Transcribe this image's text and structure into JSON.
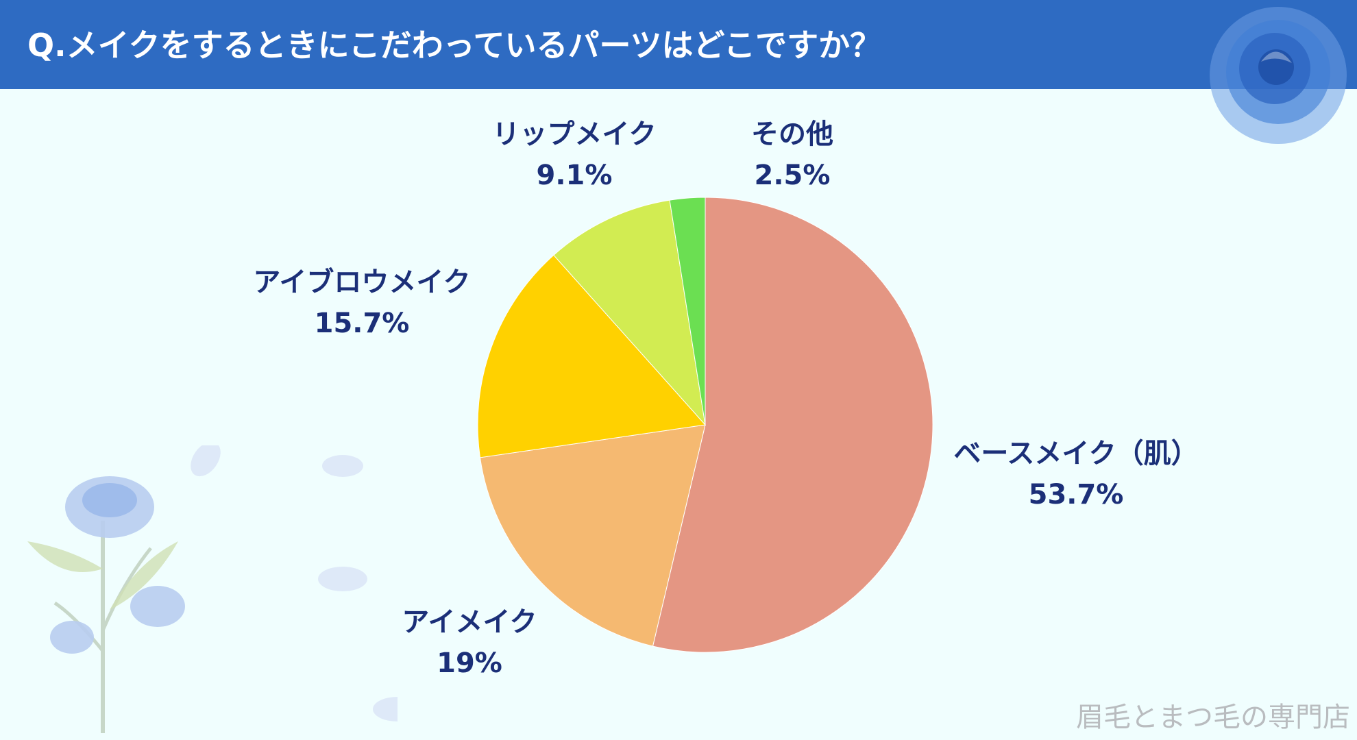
{
  "title": "Q.メイクをするときにこだわっているパーツはどこですか？",
  "footer": "眉毛とまつ毛の専門店",
  "chart_data": {
    "type": "pie",
    "slices": [
      {
        "label": "ベースメイク（肌）",
        "value": 53.7,
        "display": "53.7%",
        "color": "#e49683"
      },
      {
        "label": "アイメイク",
        "value": 19,
        "display": "19%",
        "color": "#f5b971"
      },
      {
        "label": "アイブロウメイク",
        "value": 15.7,
        "display": "15.7%",
        "color": "#ffd100"
      },
      {
        "label": "リップメイク",
        "value": 9.1,
        "display": "9.1%",
        "color": "#d2ec52"
      },
      {
        "label": "その他",
        "value": 2.5,
        "display": "2.5%",
        "color": "#6bdf52"
      }
    ],
    "start": "12 o'clock",
    "direction": "clockwise",
    "legend": "none"
  }
}
